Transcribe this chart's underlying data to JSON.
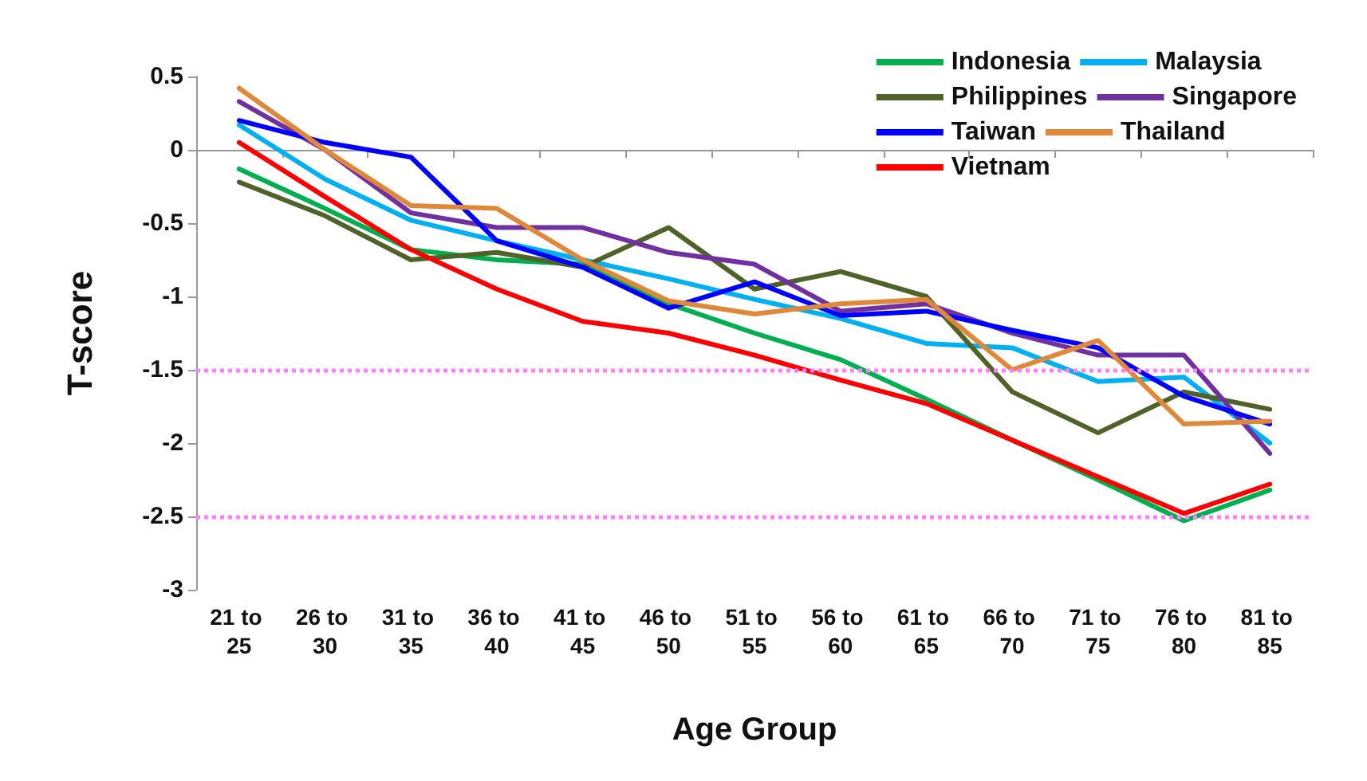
{
  "chart_data": {
    "type": "line",
    "xlabel": "Age Group",
    "ylabel": "T-score",
    "categories": [
      "21 to 25",
      "26 to 30",
      "31 to 35",
      "36 to 40",
      "41 to 45",
      "46 to 50",
      "51 to 55",
      "56 to 60",
      "61 to 65",
      "66 to 70",
      "71 to 75",
      "76 to 80",
      "81 to 85"
    ],
    "series": [
      {
        "name": "Indonesia",
        "color": "#00b050",
        "values": [
          -0.13,
          -0.4,
          -0.68,
          -0.75,
          -0.78,
          -1.05,
          -1.25,
          -1.43,
          -1.7,
          -1.98,
          -2.25,
          -2.53,
          -2.32
        ]
      },
      {
        "name": "Malaysia",
        "color": "#00b0f0",
        "values": [
          0.17,
          -0.2,
          -0.48,
          -0.62,
          -0.75,
          -0.88,
          -1.02,
          -1.15,
          -1.32,
          -1.35,
          -1.58,
          -1.55,
          -2.0
        ]
      },
      {
        "name": "Philippines",
        "color": "#4f6228",
        "values": [
          -0.22,
          -0.45,
          -0.75,
          -0.7,
          -0.8,
          -0.53,
          -0.95,
          -0.83,
          -1.0,
          -1.65,
          -1.93,
          -1.65,
          -1.77
        ]
      },
      {
        "name": "Singapore",
        "color": "#7030a0",
        "values": [
          0.33,
          0.0,
          -0.43,
          -0.53,
          -0.53,
          -0.7,
          -0.78,
          -1.1,
          -1.05,
          -1.25,
          -1.4,
          -1.4,
          -2.07
        ]
      },
      {
        "name": "Taiwan",
        "color": "#0000ff",
        "values": [
          0.2,
          0.05,
          -0.05,
          -0.62,
          -0.8,
          -1.08,
          -0.9,
          -1.13,
          -1.1,
          -1.23,
          -1.35,
          -1.68,
          -1.87
        ]
      },
      {
        "name": "Thailand",
        "color": "#e0883a",
        "values": [
          0.42,
          0.0,
          -0.38,
          -0.4,
          -0.75,
          -1.03,
          -1.12,
          -1.05,
          -1.02,
          -1.5,
          -1.3,
          -1.87,
          -1.85
        ]
      },
      {
        "name": "Vietnam",
        "color": "#ff0000",
        "values": [
          0.05,
          -0.32,
          -0.68,
          -0.95,
          -1.17,
          -1.25,
          -1.4,
          -1.57,
          -1.73,
          -1.98,
          -2.23,
          -2.48,
          -2.28
        ]
      }
    ],
    "ylim": [
      -3,
      0.5
    ],
    "yticks": [
      -3,
      -2.5,
      -2,
      -1.5,
      -1,
      -0.5,
      0,
      0.5
    ],
    "ref_lines": [
      {
        "axis": "y",
        "value": -1.5,
        "color": "#ff80ff",
        "line_style": "dotted"
      },
      {
        "axis": "y",
        "value": -2.5,
        "color": "#ff80ff",
        "line_style": "dotted"
      }
    ],
    "grid": false,
    "legend": "top right",
    "marker": "none",
    "line_style": "solid"
  }
}
